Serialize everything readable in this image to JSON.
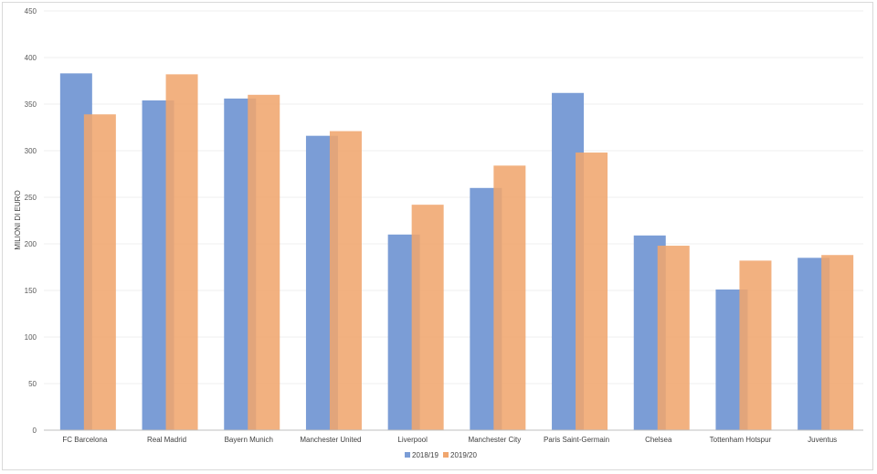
{
  "chart_data": {
    "type": "bar",
    "title": "",
    "xlabel": "",
    "ylabel": "MILIONI DI EURO",
    "ylim": [
      0,
      450
    ],
    "yticks": [
      0,
      50,
      100,
      150,
      200,
      250,
      300,
      350,
      400,
      450
    ],
    "grid": true,
    "legend_position": "bottom",
    "categories": [
      "FC Barcelona",
      "Real Madrid",
      "Bayern Munich",
      "Manchester United",
      "Liverpool",
      "Manchester City",
      "Paris Saint-Germain",
      "Chelsea",
      "Tottenham Hotspur",
      "Juventus"
    ],
    "series": [
      {
        "name": "2018/19",
        "color": "#7b9dd6",
        "values": [
          383,
          354,
          356,
          316,
          210,
          260,
          362,
          209,
          151,
          185
        ]
      },
      {
        "name": "2019/20",
        "color": "#f0a66e",
        "values": [
          339,
          382,
          360,
          321,
          242,
          284,
          298,
          198,
          182,
          188
        ]
      }
    ]
  }
}
